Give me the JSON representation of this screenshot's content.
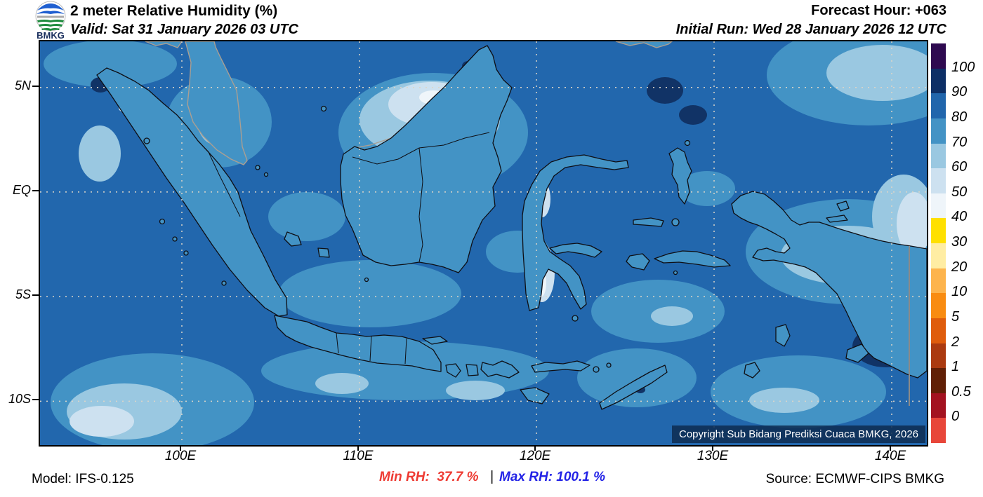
{
  "header": {
    "logo_label": "BMKG",
    "title": "2 meter Relative Humidity (%)",
    "valid": "Valid: Sat 31 January 2026 03 UTC",
    "forecast_hour": "Forecast Hour: +063",
    "initial_run": "Initial Run: Wed 28 January 2026 12 UTC"
  },
  "map": {
    "lat_ticks": [
      "5N",
      "EQ",
      "5S",
      "10S"
    ],
    "lon_ticks": [
      "100E",
      "110E",
      "120E",
      "130E",
      "140E"
    ],
    "copyright": "Copyright Sub Bidang Prediksi Cuaca BMKG, 2026"
  },
  "colorbar": {
    "labels": [
      "100",
      "90",
      "80",
      "70",
      "60",
      "50",
      "40",
      "30",
      "20",
      "10",
      "5",
      "2",
      "1",
      "0.5",
      "0"
    ],
    "colors": [
      "#2e0a50",
      "#0d2f66",
      "#2166ac",
      "#4393c5",
      "#9ac8e1",
      "#cde1f0",
      "#eff5fa",
      "#ffe000",
      "#ffeda3",
      "#fdb44d",
      "#f98c11",
      "#df5c0c",
      "#ab3a10",
      "#611f06",
      "#a31220",
      "#e8463a"
    ]
  },
  "footer": {
    "model": "Model: IFS-0.125",
    "min_rh": "Min RH:  37.7 %",
    "separator": "|",
    "max_rh": "Max RH: 100.1 %",
    "source": "Source: ECMWF-CIPS BMKG",
    "min_color": "#ee3b33",
    "max_color": "#2323e6"
  },
  "chart_data": {
    "type": "heatmap",
    "title": "2 meter Relative Humidity (%)",
    "region": "Indonesia",
    "x_ticks": [
      "100E",
      "110E",
      "120E",
      "130E",
      "140E"
    ],
    "y_ticks": [
      "5N",
      "EQ",
      "5S",
      "10S"
    ],
    "legend_values": [
      100,
      90,
      80,
      70,
      60,
      50,
      40,
      30,
      20,
      10,
      5,
      2,
      1,
      0.5,
      0
    ],
    "legend_colors_top_to_bottom": [
      "#2e0a50",
      "#0d2f66",
      "#2166ac",
      "#4393c5",
      "#9ac8e1",
      "#cde1f0",
      "#eff5fa",
      "#ffe000",
      "#ffeda3",
      "#fdb44d",
      "#f98c11",
      "#df5c0c",
      "#ab3a10",
      "#611f06",
      "#a31220",
      "#e8463a"
    ],
    "min_rh_percent": 37.7,
    "max_rh_percent": 100.1,
    "forecast_hour": 63,
    "valid_time": "Sat 31 January 2026 03 UTC",
    "initial_run": "Wed 28 January 2026 12 UTC",
    "model": "IFS-0.125",
    "source": "ECMWF-CIPS BMKG"
  }
}
